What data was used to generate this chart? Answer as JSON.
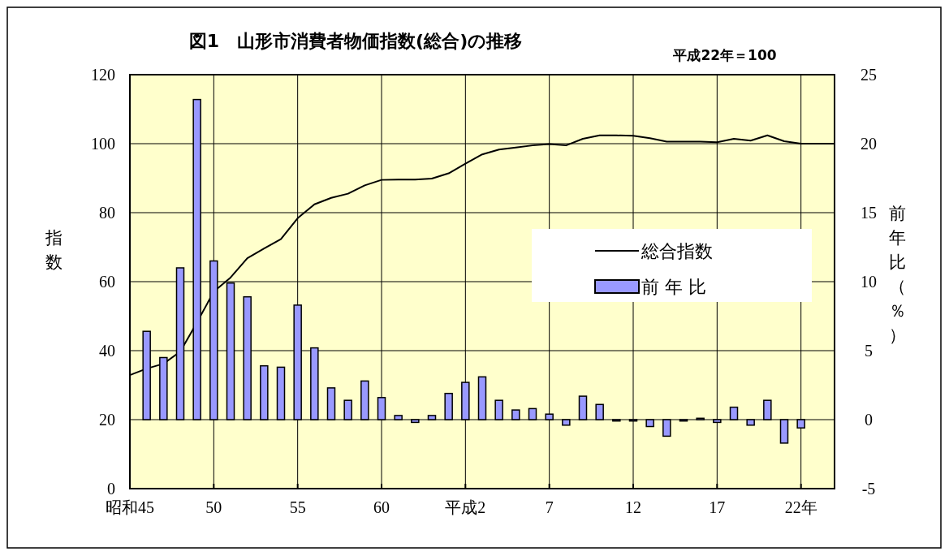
{
  "chart_data": {
    "type": "bar",
    "title": "図1　山形市消費者物価指数(総合)の推移",
    "subtitle": "平成22年＝100",
    "ylabel": "指数",
    "y2label": "前年比（％）",
    "categories": [
      "昭和45",
      null,
      null,
      null,
      null,
      "50",
      null,
      null,
      null,
      null,
      "55",
      null,
      null,
      null,
      null,
      "60",
      null,
      null,
      null,
      null,
      "平成2",
      null,
      null,
      null,
      null,
      "7",
      null,
      null,
      null,
      null,
      "12",
      null,
      null,
      null,
      null,
      "17",
      null,
      null,
      null,
      null,
      "22年",
      null,
      null
    ],
    "series": [
      {
        "name": "総合指数",
        "type": "line",
        "axis": "y",
        "color": "#000000",
        "values": [
          32.9,
          34.8,
          36.2,
          39.7,
          48.2,
          57.1,
          61.2,
          66.8,
          69.6,
          72.3,
          78.4,
          82.4,
          84.3,
          85.5,
          87.9,
          89.5,
          89.6,
          89.6,
          89.9,
          91.4,
          94.2,
          96.9,
          98.3,
          98.9,
          99.5,
          99.9,
          99.5,
          101.4,
          102.4,
          102.4,
          102.3,
          101.6,
          100.6,
          100.6,
          100.6,
          100.4,
          101.4,
          100.9,
          102.4,
          100.7,
          100.0,
          100.0,
          100.0
        ]
      },
      {
        "name": "前 年 比",
        "axis": "y2",
        "color": "#9999ff",
        "values": [
          null,
          6.4,
          4.5,
          11.0,
          23.2,
          11.5,
          9.9,
          8.9,
          3.9,
          3.8,
          8.3,
          5.2,
          2.3,
          1.4,
          2.8,
          1.6,
          0.3,
          -0.2,
          0.3,
          1.9,
          2.7,
          3.1,
          1.4,
          0.7,
          0.8,
          0.4,
          -0.4,
          1.7,
          1.1,
          -0.1,
          -0.1,
          -0.5,
          -1.2,
          -0.1,
          0.1,
          -0.2,
          0.9,
          -0.4,
          1.4,
          -1.7,
          -0.6,
          null,
          null
        ]
      }
    ],
    "ylim": [
      0,
      120
    ],
    "yticks": [
      0,
      20,
      40,
      60,
      80,
      100,
      120
    ],
    "y2lim": [
      -5,
      25
    ],
    "y2ticks": [
      -5,
      0,
      5,
      10,
      15,
      20,
      25
    ],
    "grid": true,
    "legend": "right"
  }
}
